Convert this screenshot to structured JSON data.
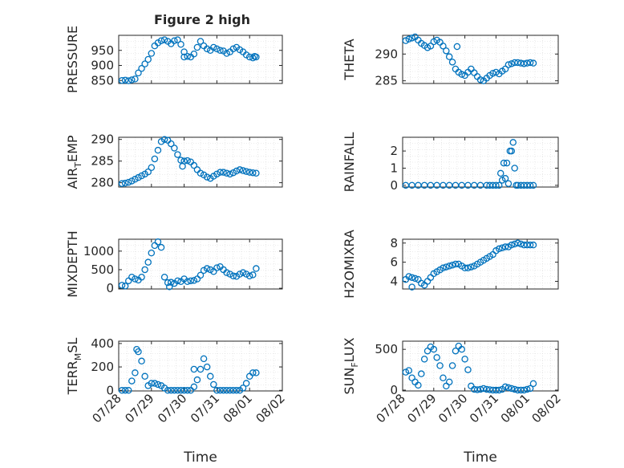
{
  "figure": {
    "title": "Figure 2 high",
    "marker_color": "#0072BD",
    "axis_color": "#262626",
    "grid_color": "#d9d9d9"
  },
  "x_ticks": [
    "07/28",
    "07/29",
    "07/30",
    "07/31",
    "08/01",
    "08/02"
  ],
  "xlabel": "Time",
  "chart_data": [
    {
      "type": "scatter",
      "title": "Figure 2 high",
      "ylabel": "PRESSURE",
      "xlim": [
        0,
        5
      ],
      "ylim": [
        840,
        1000
      ],
      "yticks": [
        850,
        900,
        950
      ],
      "grid": true,
      "x": [
        0.1,
        0.2,
        0.3,
        0.4,
        0.5,
        0.6,
        0.7,
        0.8,
        0.9,
        1.0,
        1.1,
        1.2,
        1.3,
        1.4,
        1.5,
        1.6,
        1.7,
        1.8,
        1.9,
        2.0,
        2.1,
        2.2,
        2.3,
        2.4,
        2.5,
        2.6,
        2.7,
        2.8,
        2.9,
        3.0,
        3.1,
        3.2,
        3.3,
        3.4,
        3.5,
        3.6,
        3.7,
        3.8,
        3.9,
        4.0,
        4.1,
        4.2,
        2.0,
        4.15
      ],
      "y": [
        850,
        851,
        849,
        852,
        855,
        875,
        890,
        905,
        920,
        940,
        965,
        975,
        982,
        985,
        980,
        972,
        982,
        985,
        970,
        945,
        930,
        928,
        938,
        960,
        980,
        965,
        955,
        950,
        960,
        955,
        950,
        948,
        940,
        945,
        955,
        960,
        952,
        945,
        935,
        928,
        925,
        928,
        928,
        930
      ]
    },
    {
      "type": "scatter",
      "ylabel": "THETA",
      "xlim": [
        0,
        5
      ],
      "ylim": [
        284.5,
        293.5
      ],
      "yticks": [
        285,
        290
      ],
      "grid": true,
      "x": [
        0.1,
        0.2,
        0.3,
        0.4,
        0.5,
        0.6,
        0.7,
        0.8,
        0.9,
        1.0,
        1.1,
        1.2,
        1.3,
        1.4,
        1.5,
        1.6,
        1.7,
        1.8,
        1.9,
        2.0,
        2.1,
        2.2,
        2.3,
        2.4,
        2.5,
        2.6,
        2.7,
        2.8,
        2.9,
        3.0,
        3.1,
        3.2,
        3.3,
        3.4,
        3.5,
        3.6,
        3.7,
        3.8,
        3.9,
        4.0,
        4.1,
        4.2,
        1.75
      ],
      "y": [
        292.5,
        292.8,
        293.0,
        293.2,
        292.6,
        292.0,
        291.6,
        291.2,
        291.5,
        292.3,
        292.6,
        292.2,
        291.5,
        290.6,
        289.5,
        288.5,
        287.2,
        286.6,
        286.2,
        286.0,
        286.6,
        287.2,
        286.5,
        285.8,
        285.2,
        285.0,
        285.5,
        286.0,
        286.4,
        286.6,
        286.3,
        286.8,
        287.2,
        288.0,
        288.2,
        288.4,
        288.4,
        288.3,
        288.2,
        288.3,
        288.4,
        288.3,
        291.4
      ]
    },
    {
      "type": "scatter",
      "ylabel": "AIR_TEMP",
      "xlim": [
        0,
        5
      ],
      "ylim": [
        279,
        290.5
      ],
      "yticks": [
        280,
        285,
        290
      ],
      "grid": true,
      "x": [
        0.1,
        0.2,
        0.3,
        0.4,
        0.5,
        0.6,
        0.7,
        0.8,
        0.9,
        1.0,
        1.1,
        1.2,
        1.3,
        1.4,
        1.5,
        1.6,
        1.7,
        1.8,
        1.9,
        2.0,
        2.1,
        2.2,
        2.3,
        2.4,
        2.5,
        2.6,
        2.7,
        2.8,
        2.9,
        3.0,
        3.1,
        3.2,
        3.3,
        3.4,
        3.5,
        3.6,
        3.7,
        3.8,
        3.9,
        4.0,
        4.1,
        4.2,
        1.95
      ],
      "y": [
        279.8,
        279.9,
        280.1,
        280.4,
        280.8,
        281.2,
        281.6,
        282.0,
        282.5,
        283.5,
        285.5,
        287.5,
        289.5,
        290.0,
        289.8,
        289.0,
        288.0,
        286.5,
        285.2,
        285.0,
        285.1,
        284.8,
        284.0,
        283.0,
        282.2,
        281.8,
        281.3,
        281.0,
        281.5,
        282.0,
        282.4,
        282.4,
        282.2,
        282.0,
        282.3,
        282.7,
        283.0,
        282.8,
        282.6,
        282.4,
        282.3,
        282.2,
        283.8
      ]
    },
    {
      "type": "scatter",
      "ylabel": "RAINFALL",
      "xlim": [
        0,
        5
      ],
      "ylim": [
        -0.1,
        2.8
      ],
      "yticks": [
        0,
        1,
        2
      ],
      "grid": true,
      "x": [
        0.1,
        0.3,
        0.5,
        0.7,
        0.9,
        1.1,
        1.3,
        1.5,
        1.7,
        1.9,
        2.1,
        2.3,
        2.5,
        2.7,
        2.8,
        2.9,
        3.0,
        3.1,
        3.15,
        3.2,
        3.25,
        3.3,
        3.35,
        3.4,
        3.45,
        3.5,
        3.55,
        3.6,
        3.65,
        3.7,
        3.8,
        3.9,
        4.0,
        4.1,
        4.2
      ],
      "y": [
        0,
        0,
        0,
        0,
        0,
        0,
        0,
        0,
        0,
        0,
        0,
        0,
        0,
        0,
        0,
        0,
        0,
        0,
        0.7,
        0.3,
        1.3,
        0.4,
        1.3,
        0.1,
        2.0,
        2.0,
        2.5,
        1.0,
        0,
        0,
        0,
        0,
        0,
        0,
        0
      ]
    },
    {
      "type": "scatter",
      "ylabel": "MIXDEPTH",
      "xlim": [
        0,
        5
      ],
      "ylim": [
        -20,
        1320
      ],
      "yticks": [
        0,
        500,
        1000
      ],
      "grid": true,
      "x": [
        0.1,
        0.2,
        0.3,
        0.4,
        0.5,
        0.6,
        0.7,
        0.8,
        0.9,
        1.0,
        1.1,
        1.2,
        1.3,
        1.4,
        1.5,
        1.6,
        1.7,
        1.8,
        1.9,
        2.0,
        2.1,
        2.2,
        2.3,
        2.4,
        2.5,
        2.6,
        2.7,
        2.8,
        2.9,
        3.0,
        3.1,
        3.2,
        3.3,
        3.4,
        3.5,
        3.6,
        3.7,
        3.8,
        3.9,
        4.0,
        4.1,
        4.2,
        1.55
      ],
      "y": [
        80,
        60,
        200,
        300,
        250,
        220,
        300,
        500,
        700,
        950,
        1150,
        1250,
        1100,
        300,
        150,
        160,
        130,
        200,
        180,
        250,
        180,
        200,
        210,
        250,
        350,
        480,
        530,
        500,
        450,
        550,
        580,
        500,
        420,
        380,
        330,
        320,
        380,
        420,
        380,
        330,
        360,
        530,
        40
      ]
    },
    {
      "type": "scatter",
      "ylabel": "H2OMIXRA",
      "xlim": [
        0,
        5
      ],
      "ylim": [
        3.2,
        8.4
      ],
      "yticks": [
        4,
        6,
        8
      ],
      "grid": true,
      "x": [
        0.1,
        0.2,
        0.3,
        0.4,
        0.5,
        0.6,
        0.7,
        0.8,
        0.9,
        1.0,
        1.1,
        1.2,
        1.3,
        1.4,
        1.5,
        1.6,
        1.7,
        1.8,
        1.9,
        2.0,
        2.1,
        2.2,
        2.3,
        2.4,
        2.5,
        2.6,
        2.7,
        2.8,
        2.9,
        3.0,
        3.1,
        3.2,
        3.3,
        3.4,
        3.5,
        3.6,
        3.7,
        3.8,
        3.9,
        4.0,
        4.1,
        4.2,
        0.3
      ],
      "y": [
        4.2,
        4.5,
        4.4,
        4.3,
        4.2,
        3.8,
        3.6,
        4.0,
        4.4,
        4.8,
        5.0,
        5.2,
        5.4,
        5.5,
        5.6,
        5.7,
        5.8,
        5.8,
        5.6,
        5.4,
        5.4,
        5.5,
        5.6,
        5.8,
        6.0,
        6.2,
        6.4,
        6.6,
        6.8,
        7.2,
        7.4,
        7.5,
        7.6,
        7.6,
        7.8,
        7.9,
        8.0,
        7.9,
        7.8,
        7.8,
        7.8,
        7.8,
        3.4
      ]
    },
    {
      "type": "scatter",
      "ylabel": "TERR_MSL",
      "xlim": [
        0,
        5
      ],
      "ylim": [
        -5,
        420
      ],
      "yticks": [
        0,
        200,
        400
      ],
      "grid": true,
      "x": [
        0.1,
        0.2,
        0.3,
        0.4,
        0.5,
        0.6,
        0.7,
        0.8,
        0.9,
        1.0,
        1.1,
        1.2,
        1.3,
        1.4,
        1.5,
        1.6,
        1.7,
        1.8,
        1.9,
        2.0,
        2.1,
        2.2,
        2.3,
        2.4,
        2.5,
        2.6,
        2.7,
        2.8,
        2.9,
        3.0,
        3.1,
        3.2,
        3.3,
        3.4,
        3.5,
        3.6,
        3.7,
        3.8,
        3.9,
        4.0,
        4.1,
        4.2,
        2.3,
        0.55
      ],
      "y": [
        0,
        0,
        0,
        80,
        150,
        330,
        250,
        120,
        40,
        60,
        60,
        50,
        40,
        20,
        0,
        0,
        0,
        0,
        0,
        0,
        0,
        0,
        30,
        90,
        180,
        270,
        200,
        120,
        50,
        0,
        0,
        0,
        0,
        0,
        0,
        0,
        0,
        20,
        60,
        120,
        150,
        150,
        180,
        350
      ]
    },
    {
      "type": "scatter",
      "ylabel": "SUN_FLUX",
      "xlim": [
        0,
        5
      ],
      "ylim": [
        -10,
        600
      ],
      "yticks": [
        0,
        500
      ],
      "grid": true,
      "x": [
        0.1,
        0.2,
        0.3,
        0.4,
        0.5,
        0.6,
        0.7,
        0.8,
        0.9,
        1.0,
        1.1,
        1.2,
        1.3,
        1.4,
        1.5,
        1.6,
        1.7,
        1.8,
        1.9,
        2.0,
        2.1,
        2.2,
        2.3,
        2.4,
        2.5,
        2.6,
        2.7,
        2.8,
        2.9,
        3.0,
        3.1,
        3.2,
        3.3,
        3.4,
        3.5,
        3.6,
        3.7,
        3.8,
        3.9,
        4.0,
        4.1,
        4.2
      ],
      "y": [
        220,
        240,
        150,
        100,
        60,
        200,
        380,
        480,
        530,
        500,
        400,
        300,
        150,
        50,
        100,
        300,
        480,
        540,
        500,
        380,
        250,
        50,
        10,
        5,
        10,
        20,
        10,
        5,
        0,
        0,
        0,
        10,
        40,
        30,
        20,
        10,
        0,
        0,
        0,
        10,
        20,
        80
      ]
    }
  ]
}
